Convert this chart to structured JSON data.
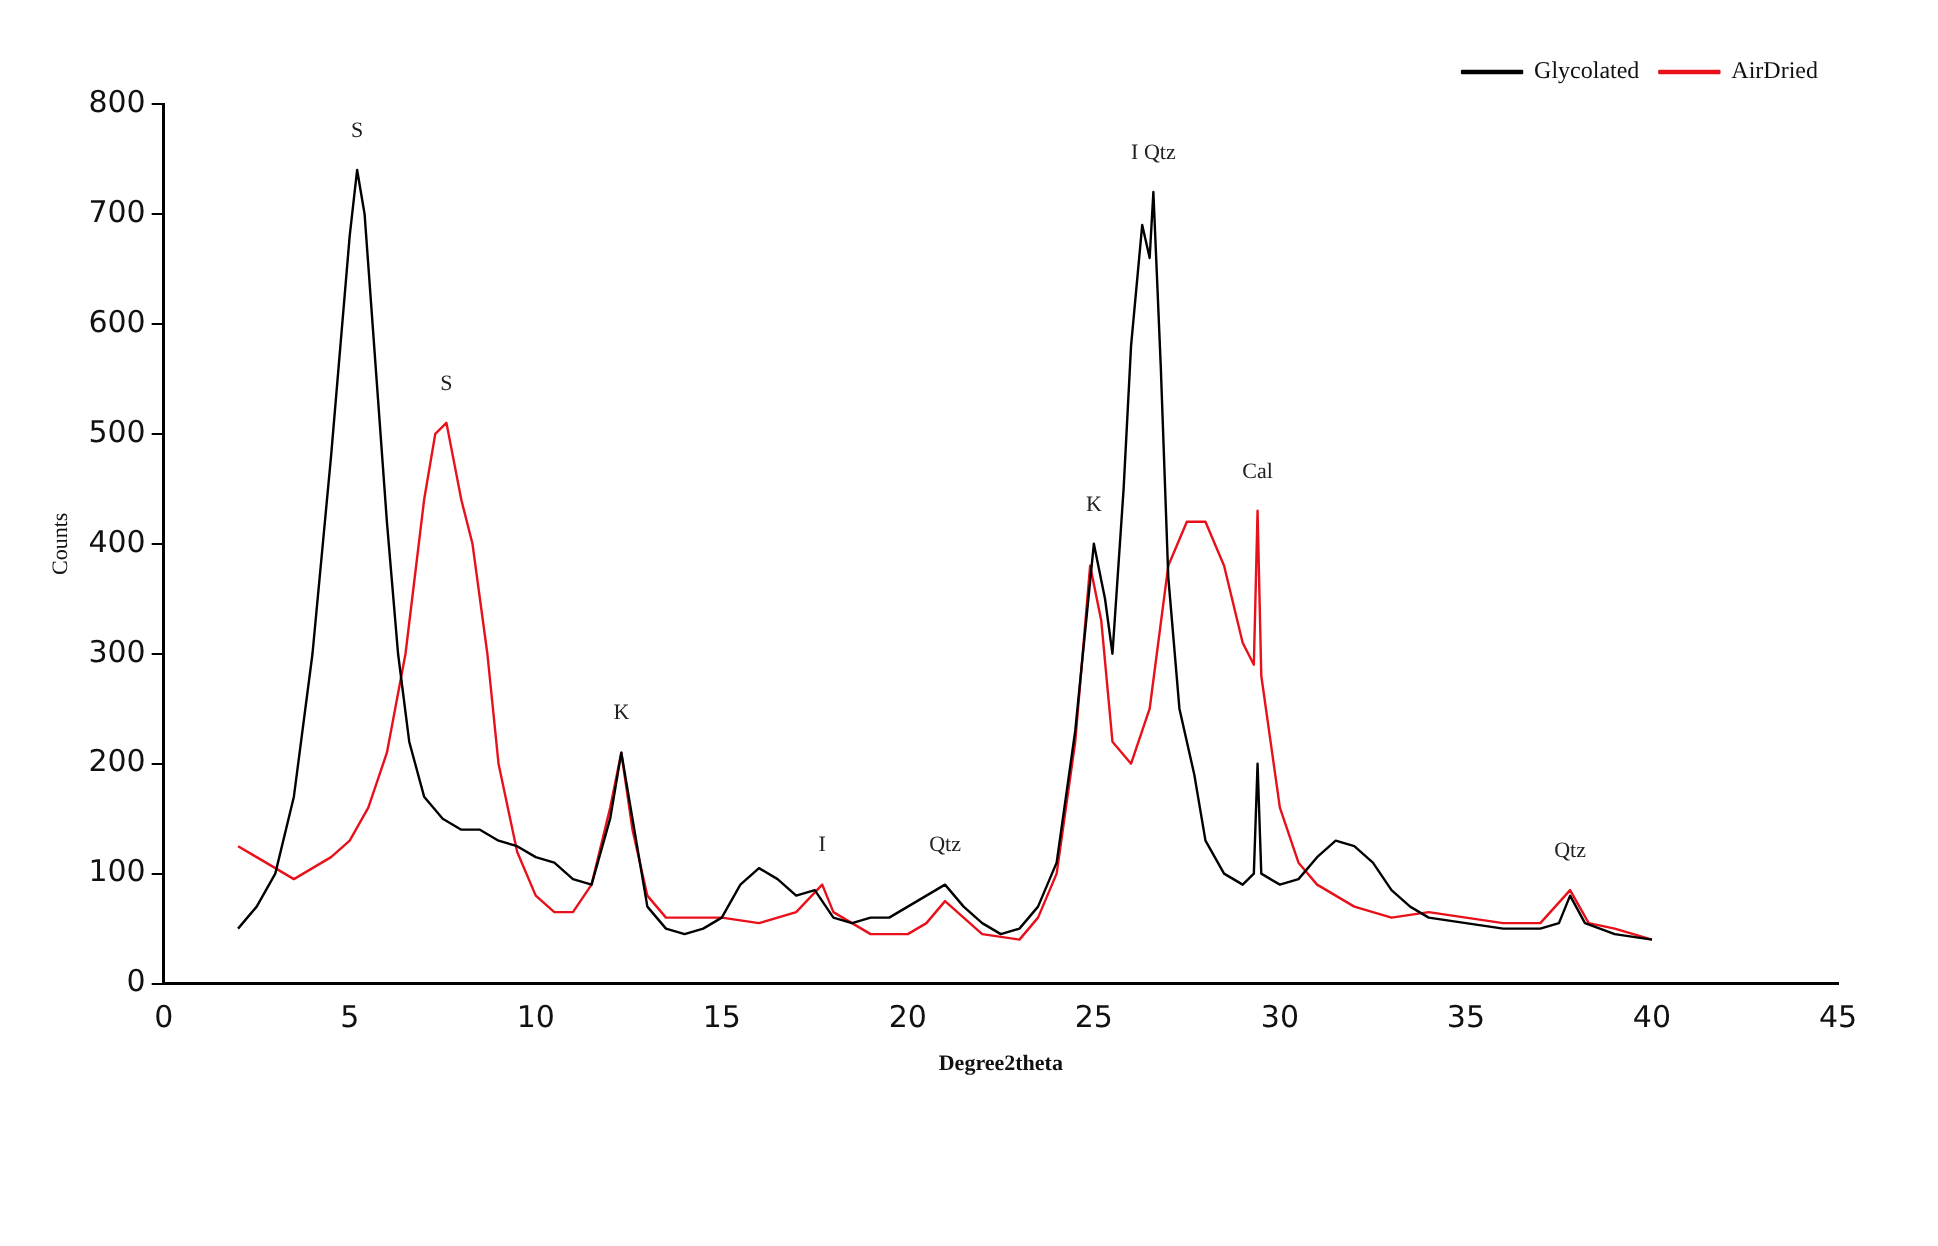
{
  "chart_data": {
    "type": "line",
    "xlabel": "Degree2theta",
    "ylabel": "Counts",
    "xlim": [
      0,
      45
    ],
    "xticks": [
      0,
      5,
      10,
      15,
      20,
      25,
      30,
      35,
      40,
      45
    ],
    "ylim": [
      0,
      800
    ],
    "yticks": [
      0,
      100,
      200,
      300,
      400,
      500,
      600,
      700,
      800
    ],
    "grid": false,
    "legend": "top right",
    "marker": "none",
    "line_style": "solid",
    "series": [
      {
        "name": "Glycolated",
        "color": "#000000",
        "x": [
          2,
          2.5,
          3,
          3.5,
          4,
          4.5,
          5,
          5.2,
          5.4,
          5.7,
          6,
          6.3,
          6.6,
          7,
          7.5,
          8,
          8.5,
          9,
          9.5,
          10,
          10.5,
          11,
          11.5,
          12,
          12.3,
          12.6,
          13,
          13.5,
          14,
          14.5,
          15,
          15.5,
          16,
          16.5,
          17,
          17.5,
          18,
          18.5,
          19,
          19.5,
          20,
          20.5,
          21,
          21.5,
          22,
          22.5,
          23,
          23.5,
          24,
          24.5,
          25,
          25.3,
          25.5,
          25.8,
          26,
          26.3,
          26.5,
          26.6,
          26.8,
          27,
          27.3,
          27.7,
          28,
          28.5,
          29,
          29.3,
          29.4,
          29.5,
          30,
          30.5,
          31,
          31.5,
          32,
          32.5,
          33,
          33.5,
          34,
          35,
          36,
          37,
          37.5,
          37.8,
          38.2,
          39,
          40
        ],
        "values": [
          50,
          70,
          100,
          170,
          300,
          480,
          680,
          740,
          700,
          560,
          420,
          300,
          220,
          170,
          150,
          140,
          140,
          130,
          125,
          115,
          110,
          95,
          90,
          150,
          210,
          150,
          70,
          50,
          45,
          50,
          60,
          90,
          105,
          95,
          80,
          85,
          60,
          55,
          60,
          60,
          70,
          80,
          90,
          70,
          55,
          45,
          50,
          70,
          110,
          230,
          400,
          350,
          300,
          450,
          580,
          690,
          660,
          720,
          560,
          370,
          250,
          190,
          130,
          100,
          90,
          100,
          200,
          100,
          90,
          95,
          115,
          130,
          125,
          110,
          85,
          70,
          60,
          55,
          50,
          50,
          55,
          80,
          55,
          45,
          40
        ]
      },
      {
        "name": "AirDried",
        "color": "#e8101a",
        "x": [
          2,
          2.5,
          3,
          3.5,
          4,
          4.5,
          5,
          5.5,
          6,
          6.5,
          7,
          7.3,
          7.6,
          8,
          8.3,
          8.7,
          9,
          9.5,
          10,
          10.5,
          11,
          11.5,
          12,
          12.3,
          12.6,
          13,
          13.5,
          14,
          15,
          16,
          17,
          17.7,
          18,
          19,
          20,
          20.5,
          21,
          21.5,
          22,
          23,
          23.5,
          24,
          24.5,
          24.9,
          25.2,
          25.5,
          26,
          26.5,
          27,
          27.5,
          28,
          28.5,
          29,
          29.3,
          29.4,
          29.5,
          30,
          30.5,
          31,
          32,
          33,
          34,
          35,
          36,
          37,
          37.8,
          38.3,
          39,
          40
        ],
        "values": [
          125,
          115,
          105,
          95,
          105,
          115,
          130,
          160,
          210,
          300,
          440,
          500,
          510,
          440,
          400,
          300,
          200,
          120,
          80,
          65,
          65,
          90,
          160,
          210,
          140,
          80,
          60,
          60,
          60,
          55,
          65,
          90,
          65,
          45,
          45,
          55,
          75,
          60,
          45,
          40,
          60,
          100,
          220,
          380,
          330,
          220,
          200,
          250,
          380,
          420,
          420,
          380,
          310,
          290,
          430,
          280,
          160,
          110,
          90,
          70,
          60,
          65,
          60,
          55,
          55,
          85,
          55,
          50,
          40
        ]
      }
    ],
    "annotations": [
      {
        "text": "S",
        "x": 5.2,
        "y": 740
      },
      {
        "text": "S",
        "x": 7.6,
        "y": 510
      },
      {
        "text": "K",
        "x": 12.3,
        "y": 210
      },
      {
        "text": "I",
        "x": 17.7,
        "y": 90
      },
      {
        "text": "Qtz",
        "x": 21,
        "y": 90
      },
      {
        "text": "K",
        "x": 25,
        "y": 400
      },
      {
        "text": "I Qtz",
        "x": 26.6,
        "y": 720
      },
      {
        "text": "Cal",
        "x": 29.4,
        "y": 430
      },
      {
        "text": "Qtz",
        "x": 37.8,
        "y": 85
      }
    ]
  }
}
